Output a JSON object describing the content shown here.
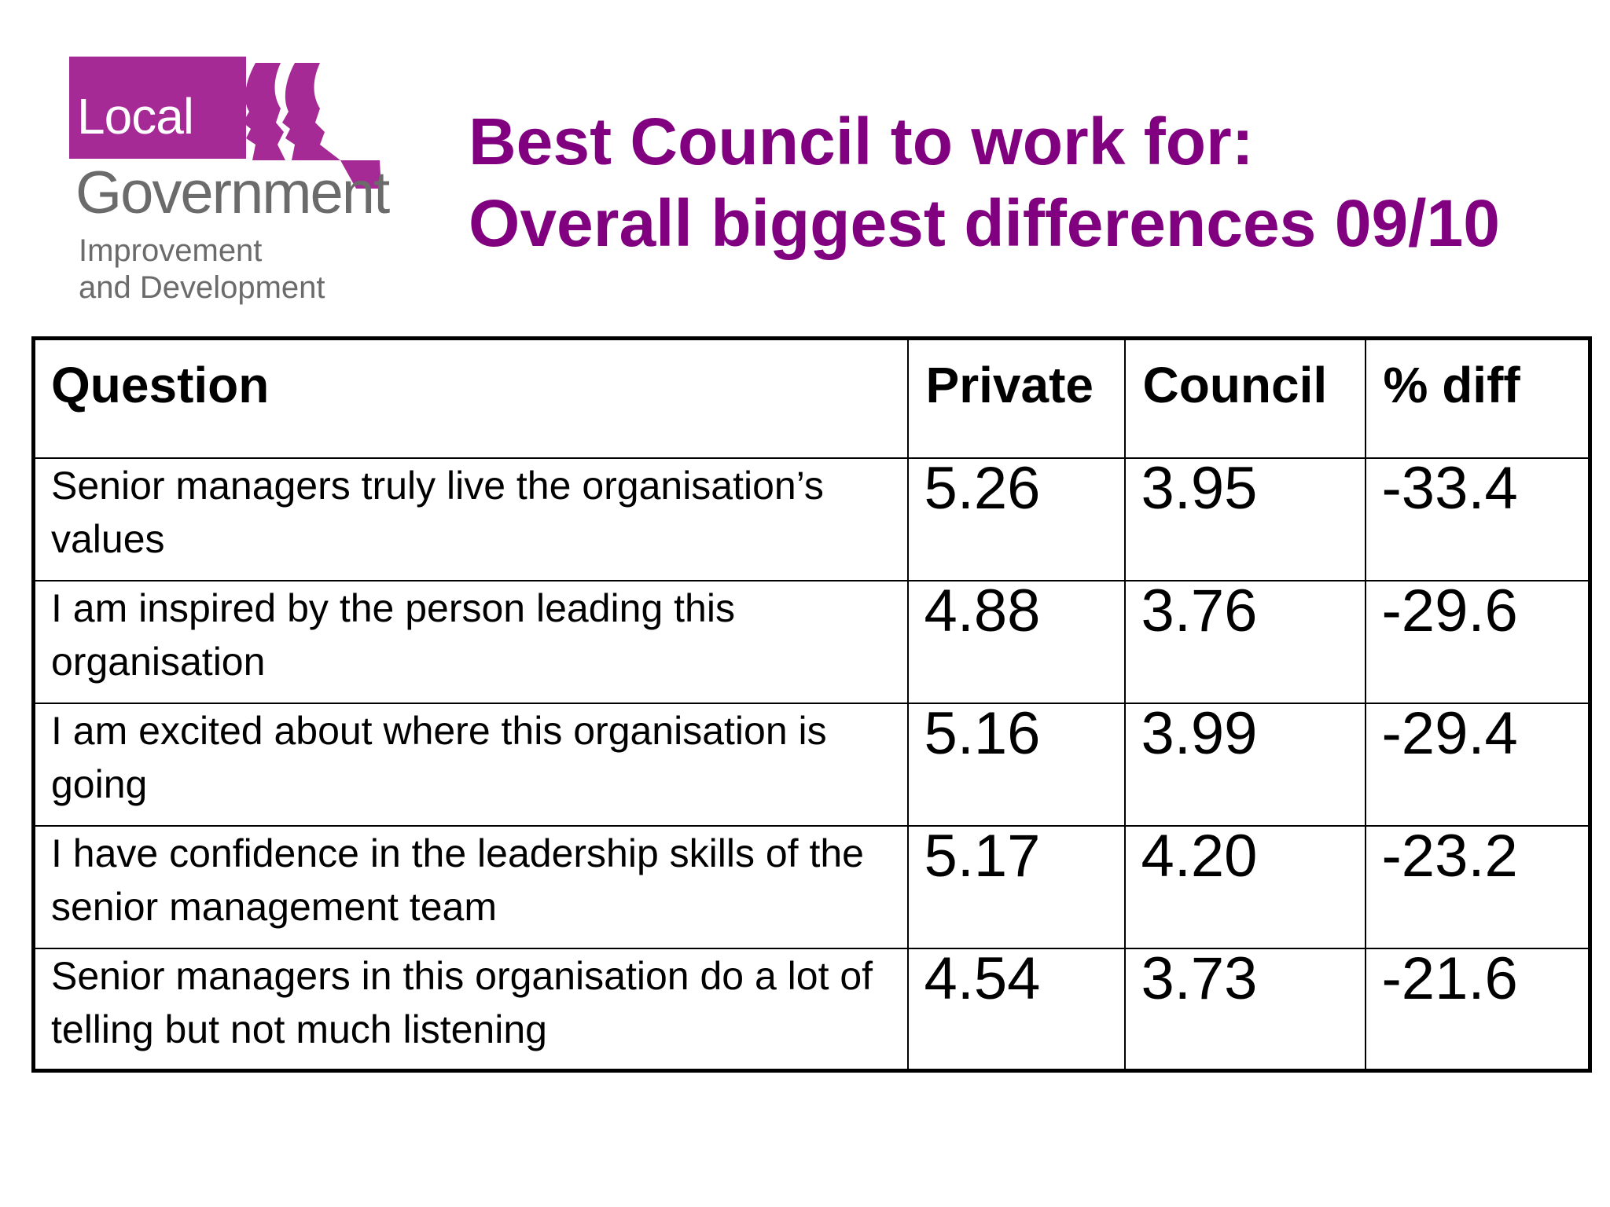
{
  "logo": {
    "line1": "Local",
    "line2": "Government",
    "line3": "Improvement",
    "line4": "and Development",
    "brand_color": "#a62a95"
  },
  "title": {
    "line1": "Best Council to work for:",
    "line2": "Overall biggest differences 09/10",
    "color": "#800080"
  },
  "table": {
    "headers": [
      "Question",
      "Private",
      "Council",
      "% diff"
    ],
    "rows": [
      {
        "question": "Senior managers truly live the organisation’s values",
        "private": "5.26",
        "council": "3.95",
        "diff": "-33.4"
      },
      {
        "question": "I am inspired by the person leading this organisation",
        "private": "4.88",
        "council": "3.76",
        "diff": "-29.6"
      },
      {
        "question": "I am excited about where this organisation is going",
        "private": "5.16",
        "council": "3.99",
        "diff": "-29.4"
      },
      {
        "question": "I have confidence in the leadership skills of the senior management team",
        "private": "5.17",
        "council": "4.20",
        "diff": "-23.2"
      },
      {
        "question": "Senior managers in this organisation do a lot of telling but not much listening",
        "private": "4.54",
        "council": "3.73",
        "diff": "-21.6"
      }
    ]
  }
}
